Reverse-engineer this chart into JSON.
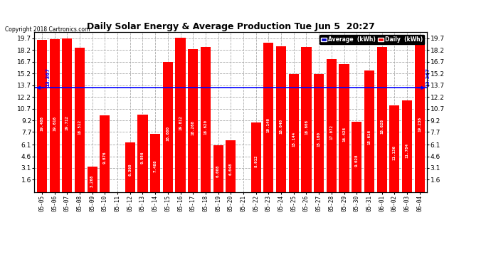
{
  "title": "Daily Solar Energy & Average Production Tue Jun 5  20:27",
  "copyright": "Copyright 2018 Cartronics.com",
  "average_value": 13.367,
  "average_label": "13.367",
  "bar_color": "#FF0000",
  "average_line_color": "#0000FF",
  "background_color": "#FFFFFF",
  "plot_bg_color": "#FFFFFF",
  "grid_color": "#AAAAAA",
  "categories": [
    "05-05",
    "05-06",
    "05-07",
    "05-08",
    "05-09",
    "05-10",
    "05-11",
    "05-12",
    "05-13",
    "05-14",
    "05-15",
    "05-16",
    "05-17",
    "05-18",
    "05-19",
    "05-20",
    "05-21",
    "05-22",
    "05-23",
    "05-24",
    "05-25",
    "05-26",
    "05-27",
    "05-28",
    "05-29",
    "05-30",
    "05-31",
    "06-01",
    "06-02",
    "06-03",
    "06-04"
  ],
  "values": [
    19.488,
    19.616,
    19.712,
    18.512,
    3.268,
    9.876,
    0.0,
    6.36,
    9.956,
    7.488,
    16.68,
    19.812,
    18.268,
    18.62,
    6.008,
    6.648,
    0.0,
    8.912,
    19.14,
    18.64,
    15.144,
    18.608,
    15.16,
    17.072,
    16.428,
    9.028,
    15.616,
    18.628,
    11.136,
    11.784,
    19.236
  ],
  "ylim": [
    0,
    20.5
  ],
  "yticks": [
    1.6,
    3.1,
    4.6,
    6.1,
    7.7,
    9.2,
    10.7,
    12.2,
    13.7,
    15.2,
    16.7,
    18.2,
    19.7
  ],
  "legend_avg_color": "#0000CC",
  "legend_daily_color": "#FF0000",
  "legend_avg_text": "Average  (kWh)",
  "legend_daily_text": "Daily  (kWh)"
}
